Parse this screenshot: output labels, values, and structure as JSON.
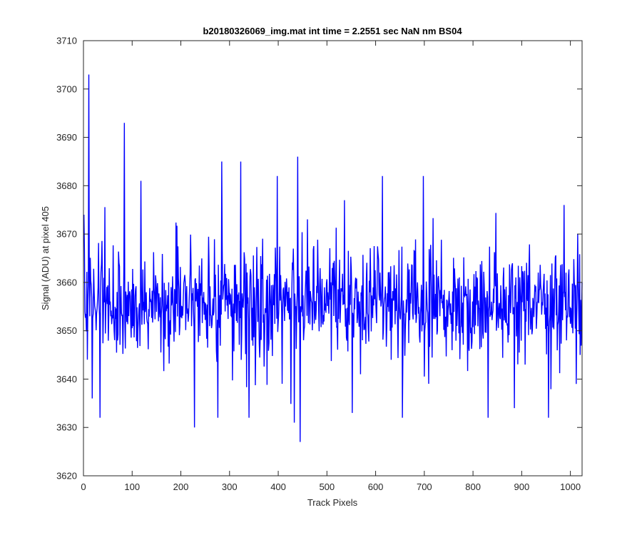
{
  "chart_data": {
    "type": "line",
    "title": "b20180326069_img.mat int time = 2.2551 sec  NaN nm BS04",
    "xlabel": "Track Pixels",
    "ylabel": "Signal (ADU) at pixel 405",
    "xlim": [
      0,
      1024
    ],
    "ylim": [
      3620,
      3710
    ],
    "xticks": [
      0,
      100,
      200,
      300,
      400,
      500,
      600,
      700,
      800,
      900,
      1000
    ],
    "yticks": [
      3620,
      3630,
      3640,
      3650,
      3660,
      3670,
      3680,
      3690,
      3700,
      3710
    ],
    "grid": false,
    "box": true,
    "series": [
      {
        "color": "#0000ff",
        "x_start": 1,
        "x_step": 1,
        "points": 1024,
        "approx_mean": 3656,
        "approx_range": [
          3627,
          3703
        ],
        "notable_points": [
          {
            "x": 1,
            "y": 3674
          },
          {
            "x": 3,
            "y": 3654
          },
          {
            "x": 11,
            "y": 3703
          },
          {
            "x": 18,
            "y": 3636
          },
          {
            "x": 34,
            "y": 3632
          },
          {
            "x": 84,
            "y": 3693
          },
          {
            "x": 118,
            "y": 3681
          },
          {
            "x": 228,
            "y": 3630
          },
          {
            "x": 276,
            "y": 3632
          },
          {
            "x": 284,
            "y": 3685
          },
          {
            "x": 323,
            "y": 3685
          },
          {
            "x": 340,
            "y": 3632
          },
          {
            "x": 398,
            "y": 3682
          },
          {
            "x": 433,
            "y": 3631
          },
          {
            "x": 440,
            "y": 3686
          },
          {
            "x": 445,
            "y": 3627
          },
          {
            "x": 552,
            "y": 3633
          },
          {
            "x": 614,
            "y": 3682
          },
          {
            "x": 655,
            "y": 3632
          },
          {
            "x": 698,
            "y": 3682
          },
          {
            "x": 831,
            "y": 3632
          },
          {
            "x": 885,
            "y": 3634
          },
          {
            "x": 955,
            "y": 3632
          },
          {
            "x": 987,
            "y": 3676
          },
          {
            "x": 1012,
            "y": 3639
          },
          {
            "x": 1015,
            "y": 3670
          },
          {
            "x": 1020,
            "y": 3645
          },
          {
            "x": 1024,
            "y": 3660
          }
        ]
      }
    ]
  }
}
